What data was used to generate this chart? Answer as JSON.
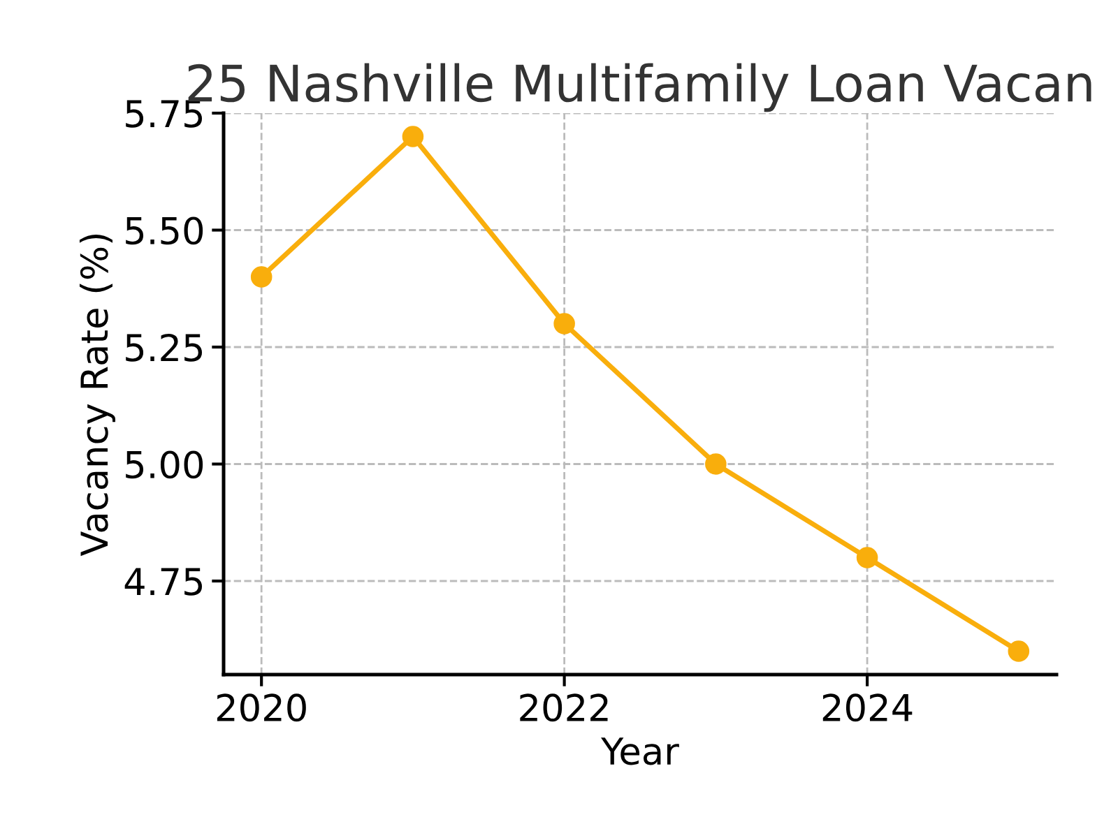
{
  "chart_data": {
    "type": "line",
    "title": "25 Nashville Multifamily Loan Vacan",
    "xlabel": "Year",
    "ylabel": "Vacancy Rate (%)",
    "x": [
      2020,
      2021,
      2022,
      2023,
      2024,
      2025
    ],
    "series": [
      {
        "color": "#f9ae0c",
        "values": [
          5.4,
          5.7,
          5.3,
          5.0,
          4.8,
          4.6
        ]
      }
    ],
    "xlim": [
      2019.75,
      2025.25
    ],
    "xticks": [
      2020,
      2022,
      2024
    ],
    "ylim": [
      4.55,
      5.75
    ],
    "yticks": [
      {
        "value": 4.75,
        "label": "4.75"
      },
      {
        "value": 5.0,
        "label": "5.00"
      },
      {
        "value": 5.25,
        "label": "5.25"
      },
      {
        "value": 5.5,
        "label": "5.50"
      },
      {
        "value": 5.75,
        "label": "5.75"
      }
    ],
    "grid": true,
    "marker": "circle",
    "line_style": "solid"
  }
}
